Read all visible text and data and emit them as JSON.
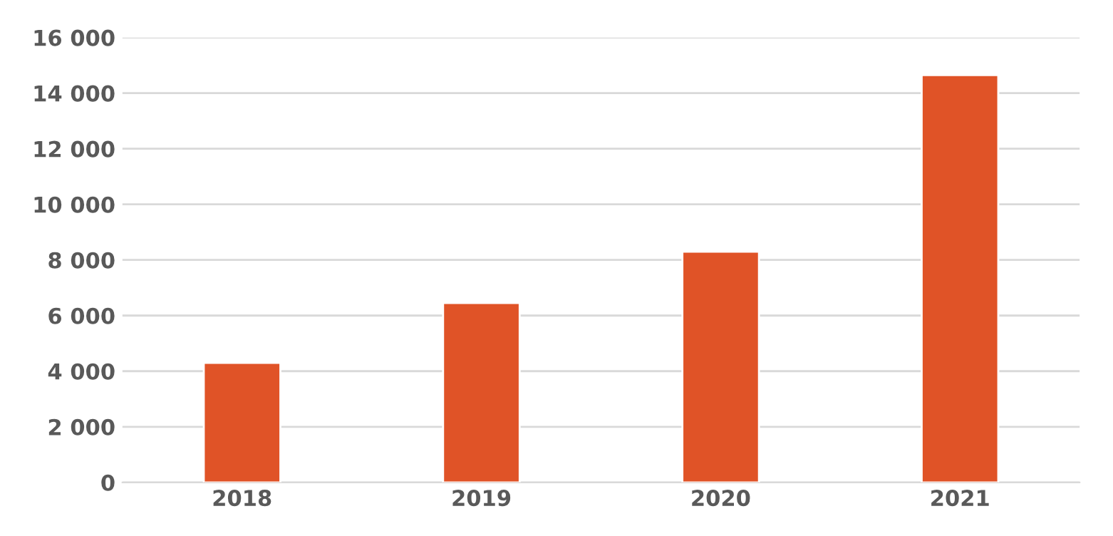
{
  "chart_data": {
    "type": "bar",
    "categories": [
      "2018",
      "2019",
      "2020",
      "2021"
    ],
    "values": [
      4300,
      6450,
      8300,
      14650
    ],
    "color": "#e05327",
    "ylim": [
      0,
      16000
    ],
    "yticks": [
      0,
      {
        "value": 2000,
        "label": "2 000"
      },
      {
        "value": 4000,
        "label": "4 000"
      },
      {
        "value": 6000,
        "label": "6 000"
      },
      {
        "value": 8000,
        "label": "8 000"
      },
      {
        "value": 10000,
        "label": "10 000"
      },
      {
        "value": 12000,
        "label": "12 000"
      },
      {
        "value": 14000,
        "label": "14 000"
      },
      {
        "value": 16000,
        "label": "16 000"
      }
    ],
    "grid": "y",
    "legend": false
  }
}
